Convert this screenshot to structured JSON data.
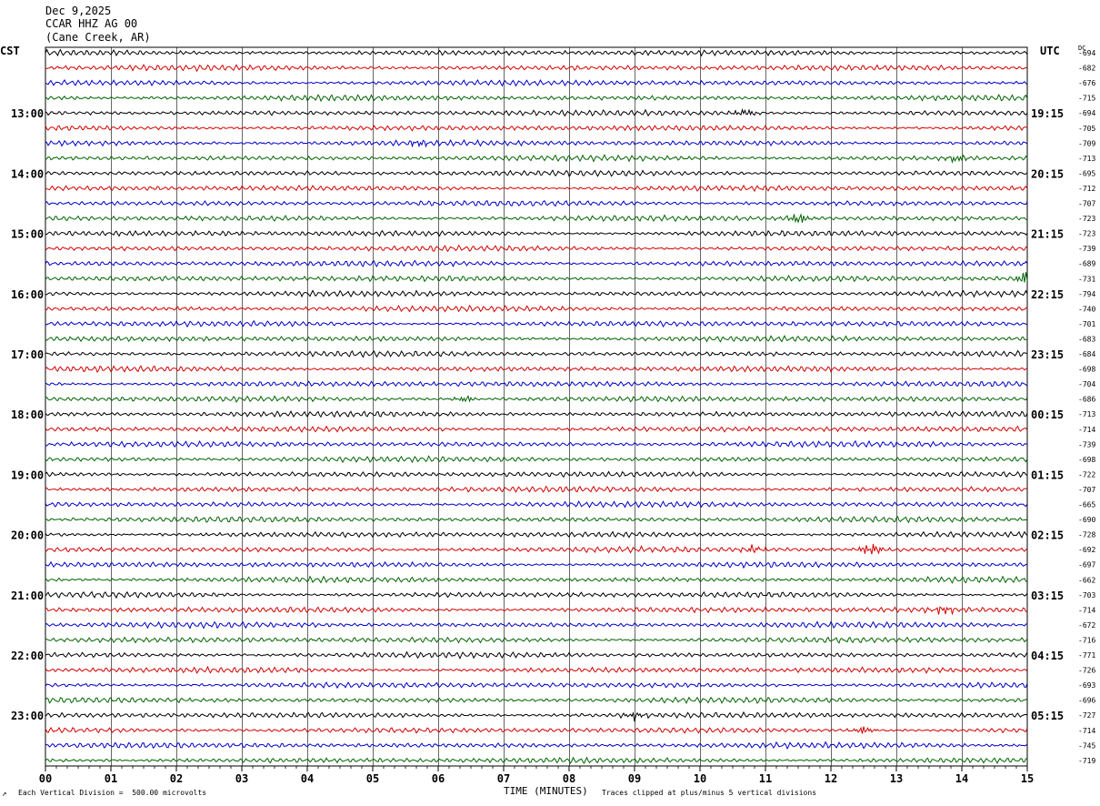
{
  "header": {
    "date": "Dec 9,2025",
    "station": "CCAR HHZ AG 00",
    "location": "(Cane Creek, AR)"
  },
  "left_timezone": "CST",
  "right_timezone": "UTC",
  "dc_label": "DC",
  "footer": {
    "vertical_division": "Each Vertical Division =  500.00 microvolts",
    "xlabel": "TIME (MINUTES)",
    "clip_note": "Traces clipped at plus/minus 5 vertical divisions",
    "corner_mark": "↗"
  },
  "colors": {
    "trace_cycle": [
      "#000000",
      "#d40000",
      "#0000c8",
      "#006400"
    ],
    "grid": "#000000"
  },
  "chart_data": {
    "type": "line",
    "description_type": "helicorder seismogram",
    "xlabel": "TIME (MINUTES)",
    "xlim": [
      0,
      15
    ],
    "x_ticks": [
      "00",
      "01",
      "02",
      "03",
      "04",
      "05",
      "06",
      "07",
      "08",
      "09",
      "10",
      "11",
      "12",
      "13",
      "14",
      "15"
    ],
    "trace_count": 48,
    "trace_minutes": 15,
    "left_hour_labels": [
      {
        "trace": 4,
        "label": "13:00"
      },
      {
        "trace": 8,
        "label": "14:00"
      },
      {
        "trace": 12,
        "label": "15:00"
      },
      {
        "trace": 16,
        "label": "16:00"
      },
      {
        "trace": 20,
        "label": "17:00"
      },
      {
        "trace": 24,
        "label": "18:00"
      },
      {
        "trace": 28,
        "label": "19:00"
      },
      {
        "trace": 32,
        "label": "20:00"
      },
      {
        "trace": 36,
        "label": "21:00"
      },
      {
        "trace": 40,
        "label": "22:00"
      },
      {
        "trace": 44,
        "label": "23:00"
      }
    ],
    "right_hour_labels": [
      {
        "trace": 4,
        "label": "19:15"
      },
      {
        "trace": 8,
        "label": "20:15"
      },
      {
        "trace": 12,
        "label": "21:15"
      },
      {
        "trace": 16,
        "label": "22:15"
      },
      {
        "trace": 20,
        "label": "23:15"
      },
      {
        "trace": 24,
        "label": "00:15"
      },
      {
        "trace": 28,
        "label": "01:15"
      },
      {
        "trace": 32,
        "label": "02:15"
      },
      {
        "trace": 36,
        "label": "03:15"
      },
      {
        "trace": 40,
        "label": "04:15"
      },
      {
        "trace": 44,
        "label": "05:15"
      }
    ],
    "dc_offsets": [
      "-694",
      "-682",
      "-676",
      "-715",
      "-694",
      "-705",
      "-709",
      "-713",
      "-695",
      "-712",
      "-707",
      "-723",
      "-723",
      "-739",
      "-689",
      "-731",
      "-794",
      "-740",
      "-701",
      "-683",
      "-684",
      "-698",
      "-704",
      "-686",
      "-713",
      "-714",
      "-739",
      "-698",
      "-722",
      "-707",
      "-665",
      "-690",
      "-728",
      "-692",
      "-697",
      "-662",
      "-703",
      "-714",
      "-672",
      "-716",
      "-771",
      "-726",
      "-693",
      "-696",
      "-727",
      "-714",
      "-745",
      "-719"
    ],
    "events": [
      {
        "trace": 4,
        "minute": 10.7,
        "amplitude": 1.8
      },
      {
        "trace": 6,
        "minute": 5.7,
        "amplitude": 1.3
      },
      {
        "trace": 7,
        "minute": 13.9,
        "amplitude": 1.6
      },
      {
        "trace": 11,
        "minute": 11.5,
        "amplitude": 2.5
      },
      {
        "trace": 15,
        "minute": 14.98,
        "amplitude": 2.8
      },
      {
        "trace": 23,
        "minute": 6.4,
        "amplitude": 1.5
      },
      {
        "trace": 33,
        "minute": 10.8,
        "amplitude": 1.6
      },
      {
        "trace": 33,
        "minute": 12.6,
        "amplitude": 3.0
      },
      {
        "trace": 37,
        "minute": 13.7,
        "amplitude": 1.8
      },
      {
        "trace": 44,
        "minute": 9.0,
        "amplitude": 1.4
      },
      {
        "trace": 45,
        "minute": 12.5,
        "amplitude": 1.4
      }
    ]
  }
}
